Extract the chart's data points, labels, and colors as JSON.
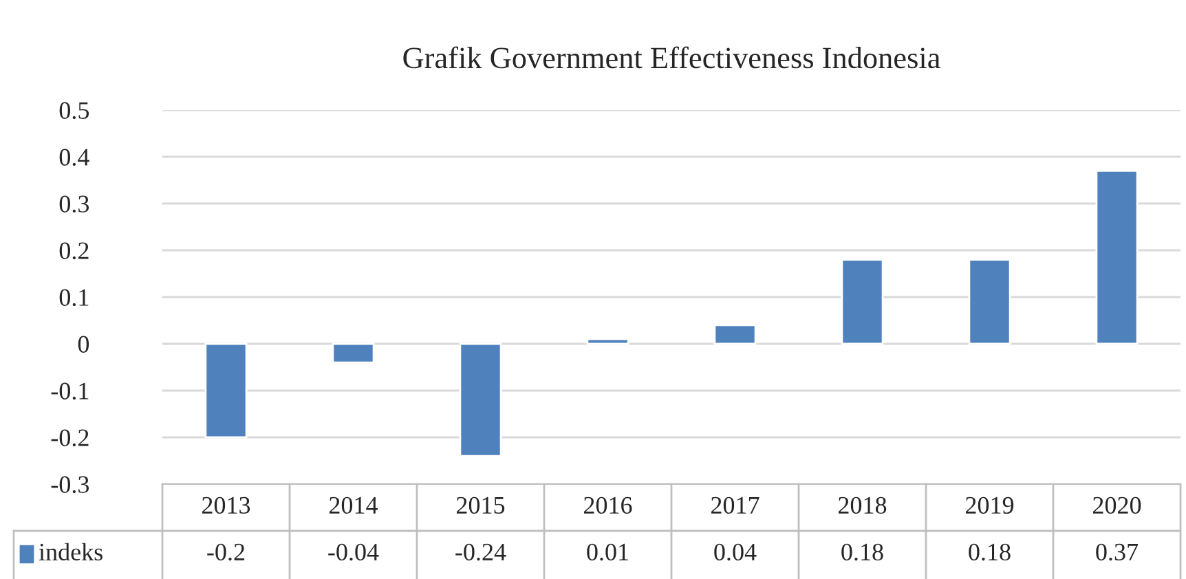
{
  "chart_data": {
    "type": "bar",
    "title": "Grafik Government Effectiveness Indonesia",
    "categories": [
      "2013",
      "2014",
      "2015",
      "2016",
      "2017",
      "2018",
      "2019",
      "2020"
    ],
    "series": [
      {
        "name": "indeks",
        "color": "#4f81bd",
        "values": [
          -0.2,
          -0.04,
          -0.24,
          0.01,
          0.04,
          0.18,
          0.18,
          0.37
        ]
      }
    ],
    "ylim": [
      -0.3,
      0.5
    ],
    "yticks": [
      -0.3,
      -0.2,
      -0.1,
      0,
      0.1,
      0.2,
      0.3,
      0.4,
      0.5
    ],
    "grid": "y",
    "data_labels": true
  }
}
